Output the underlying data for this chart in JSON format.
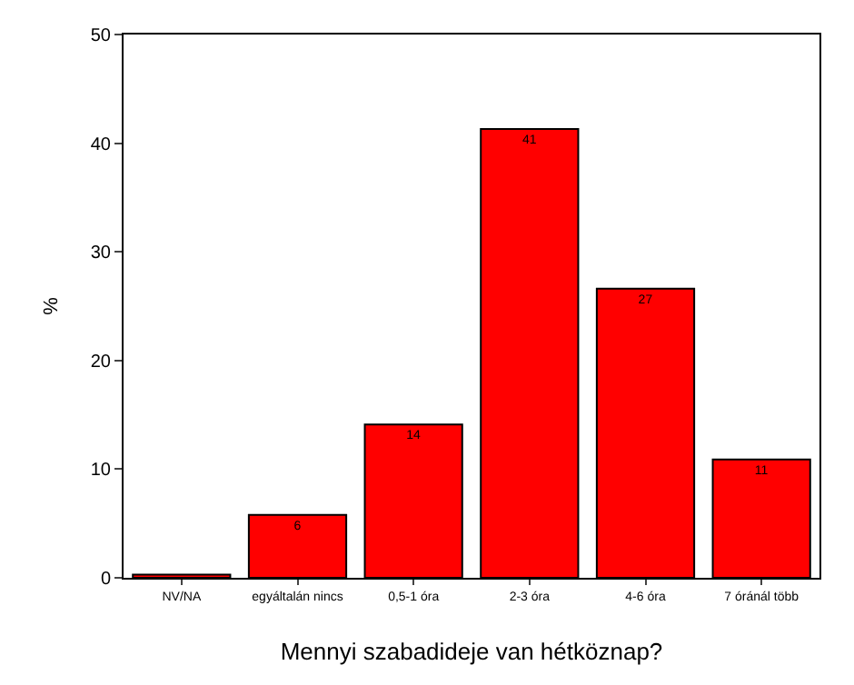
{
  "chart_data": {
    "type": "bar",
    "xlabel": "Mennyi szabadideje van hétköznap?",
    "ylabel": "%",
    "categories": [
      "NV/NA",
      "egyáltalán nincs",
      "0,5-1 óra",
      "2-3 óra",
      "4-6 óra",
      "7 óránál több"
    ],
    "values": [
      0.3,
      5.8,
      14.1,
      41.3,
      26.6,
      10.9
    ],
    "value_labels": [
      null,
      "6",
      "14",
      "41",
      "27",
      "11"
    ],
    "color": "#ff0000",
    "ylim": [
      0,
      50
    ],
    "yticks": [
      0,
      10,
      20,
      30,
      40,
      50
    ]
  }
}
